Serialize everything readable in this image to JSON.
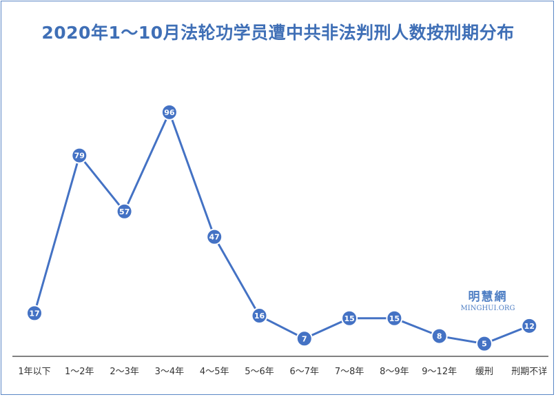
{
  "colors": {
    "line": "#4472c4",
    "marker": "#4472c4",
    "title": "#3f6fb6",
    "axis": "#000000"
  },
  "watermark": {
    "cn": "明慧網",
    "en": "MINGHUI.ORG"
  },
  "chart_data": {
    "type": "line",
    "title": "2020年1～10月法轮功学员遭中共非法判刑人数按刑期分布",
    "xlabel": "",
    "ylabel": "",
    "categories": [
      "1年以下",
      "1～2年",
      "2～3年",
      "3～4年",
      "4～5年",
      "5～6年",
      "6～7年",
      "7～8年",
      "8～9年",
      "9～12年",
      "缓刑",
      "刑期不详"
    ],
    "series": [
      {
        "values": [
          17,
          79,
          57,
          96,
          47,
          16,
          7,
          15,
          15,
          8,
          5,
          12
        ]
      }
    ],
    "ylim": [
      0,
      100
    ],
    "grid": false,
    "legend": "none",
    "data_labels": true
  }
}
